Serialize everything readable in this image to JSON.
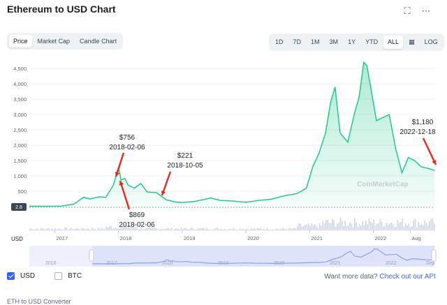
{
  "header": {
    "title": "Ethereum to USD Chart"
  },
  "icons": {
    "fullscreen": "fullscreen-icon",
    "more": "more-icon",
    "calendar": "calendar-icon"
  },
  "tabs": [
    {
      "label": "Price",
      "active": true
    },
    {
      "label": "Market Cap",
      "active": false
    },
    {
      "label": "Candle Chart",
      "active": false
    }
  ],
  "ranges": [
    {
      "label": "1D",
      "active": false
    },
    {
      "label": "7D",
      "active": false
    },
    {
      "label": "1M",
      "active": false
    },
    {
      "label": "3M",
      "active": false
    },
    {
      "label": "1Y",
      "active": false
    },
    {
      "label": "YTD",
      "active": false
    },
    {
      "label": "ALL",
      "active": true
    }
  ],
  "log_label": "LOG",
  "colors": {
    "line": "#16c784",
    "fill": "#d9f5ea",
    "annotation": "#e8291c",
    "accent": "#3861fb",
    "navigator": "#8ea0f0"
  },
  "chart_data": {
    "type": "area",
    "title": "Ethereum to USD Chart",
    "ylabel": "USD",
    "xlabel": "",
    "ylim": [
      0,
      4800
    ],
    "y_ticks": [
      500,
      1000,
      1500,
      2000,
      2500,
      3000,
      3500,
      4000,
      4500
    ],
    "y_tick_labels": [
      "500",
      "1,000",
      "1,500",
      "2,000",
      "2,500",
      "3,000",
      "3,500",
      "4,000",
      "4,500"
    ],
    "x_ticks": [
      "2017",
      "2018",
      "2019",
      "2020",
      "2021",
      "2022",
      "Aug"
    ],
    "baseline_label": "2.8",
    "grid": true,
    "watermark": "CoinMarketCap",
    "series": [
      {
        "x": [
          2016.6,
          2016.9,
          2017.1,
          2017.3,
          2017.45,
          2017.55,
          2017.7,
          2017.8,
          2017.92,
          2018.0,
          2018.04,
          2018.1,
          2018.15,
          2018.25,
          2018.35,
          2018.45,
          2018.6,
          2018.75,
          2018.9,
          2019.0,
          2019.2,
          2019.45,
          2019.6,
          2019.8,
          2020.0,
          2020.2,
          2020.4,
          2020.6,
          2020.8,
          2020.95,
          2021.05,
          2021.15,
          2021.25,
          2021.33,
          2021.4,
          2021.48,
          2021.6,
          2021.7,
          2021.78,
          2021.85,
          2021.9,
          2021.95,
          2022.05,
          2022.15,
          2022.25,
          2022.35,
          2022.45,
          2022.55,
          2022.65,
          2022.75,
          2022.85,
          2022.96
        ],
        "y": [
          12,
          10,
          15,
          80,
          300,
          250,
          320,
          300,
          700,
          1300,
          869,
          920,
          700,
          600,
          750,
          480,
          450,
          221,
          150,
          130,
          170,
          280,
          200,
          180,
          140,
          200,
          240,
          350,
          420,
          600,
          1300,
          1750,
          2400,
          3400,
          3900,
          2400,
          2100,
          3000,
          3600,
          4700,
          4600,
          4000,
          2800,
          2900,
          3000,
          1900,
          1100,
          1600,
          1500,
          1300,
          1250,
          1180
        ]
      }
    ],
    "volume_note": "volume bars below main chart",
    "annotations": [
      {
        "label": "$756",
        "date": "2018-02-06"
      },
      {
        "label": "$869",
        "date": "2018-02-06"
      },
      {
        "label": "$221",
        "date": "2018-10-05"
      },
      {
        "label": "$1,180",
        "date": "2022-12-18"
      }
    ],
    "navigator_ticks": [
      "2016",
      "2017",
      "2018",
      "2019",
      "2020",
      "2021",
      "2022",
      "Sep"
    ]
  },
  "legend": {
    "usd": "USD",
    "btc": "BTC"
  },
  "api": {
    "prefix": "Want more data?",
    "link": "Check out our API"
  },
  "footer": {
    "text": "ETH to USD Converter"
  }
}
